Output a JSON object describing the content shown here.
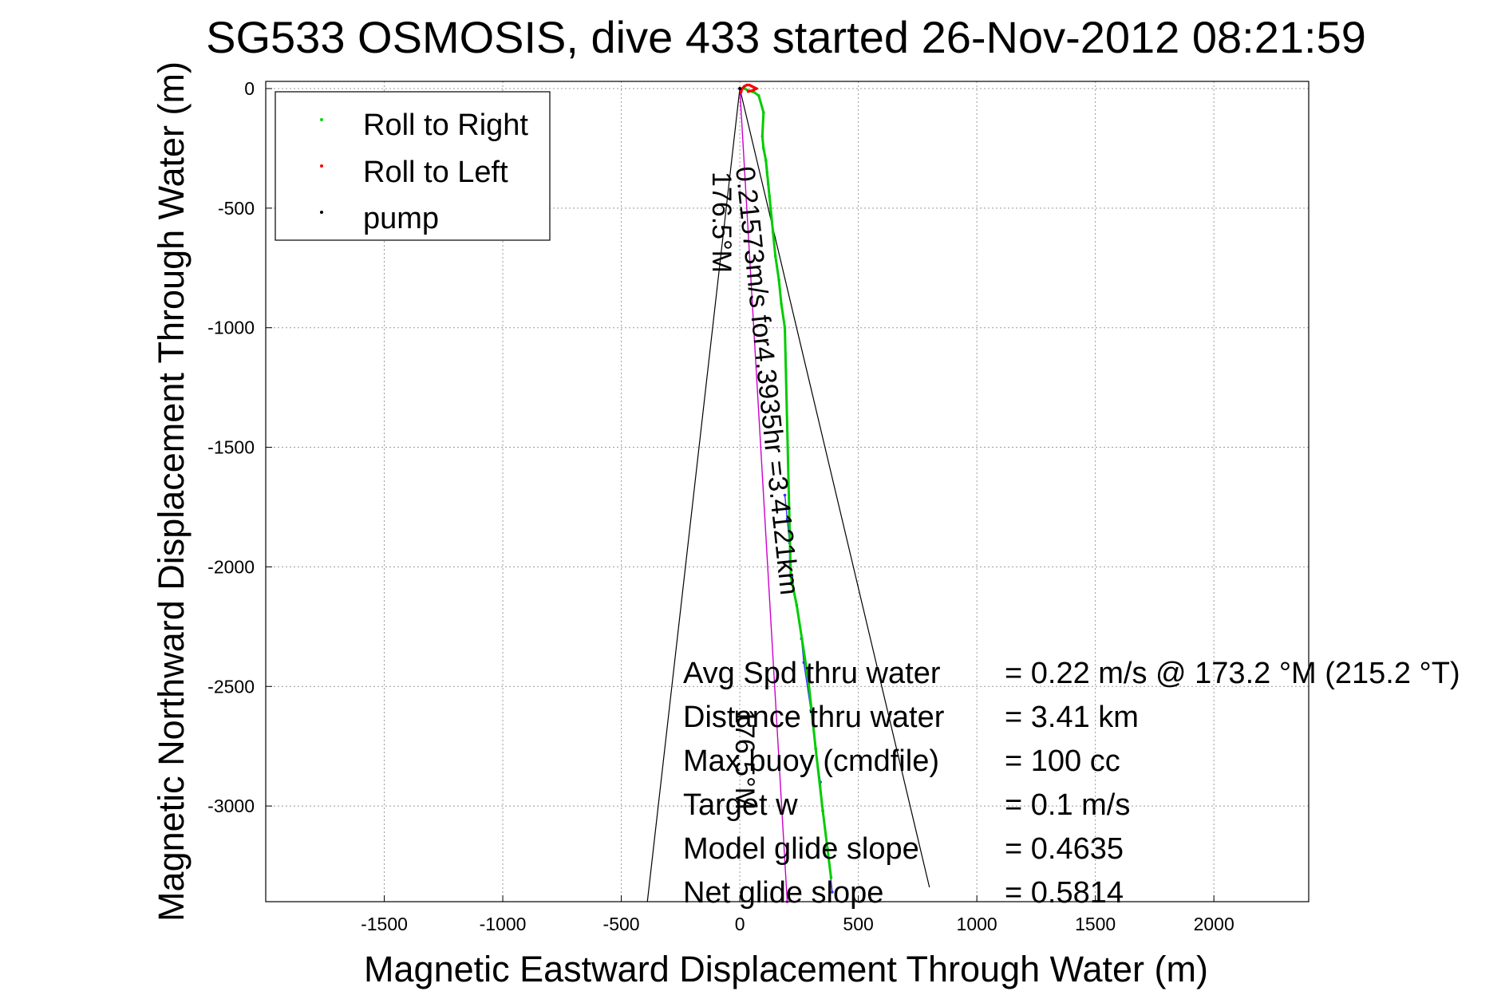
{
  "chart_data": {
    "type": "scatter",
    "title": "SG533 OSMOSIS, dive 433 started 26-Nov-2012 08:21:59",
    "xlabel": "Magnetic Eastward Displacement Through Water (m)",
    "ylabel": "Magnetic Northward Displacement Through Water (m)",
    "xlim": [
      -2000,
      2400
    ],
    "ylim": [
      -3400,
      30
    ],
    "xticks": [
      -1500,
      -1000,
      -500,
      0,
      500,
      1000,
      1500,
      2000
    ],
    "yticks": [
      0,
      -500,
      -1000,
      -1500,
      -2000,
      -2500,
      -3000
    ],
    "grid": true,
    "legend_position": "top-left",
    "legend": [
      {
        "label": "Roll to Right",
        "color": "#00dd00"
      },
      {
        "label": "Roll to Left",
        "color": "#ff0000"
      },
      {
        "label": "pump",
        "color": "#000000"
      }
    ],
    "series": [
      {
        "name": "Roll to Right",
        "color": "#00cc00",
        "x": [
          20,
          40,
          60,
          80,
          100,
          95,
          100,
          110,
          115,
          120,
          125,
          130,
          140,
          150,
          165,
          175,
          190,
          215,
          240,
          290,
          320,
          350,
          370,
          385
        ],
        "y": [
          0,
          -10,
          -15,
          -30,
          -100,
          -200,
          -250,
          -300,
          -350,
          -400,
          -450,
          -500,
          -600,
          -700,
          -800,
          -900,
          -1000,
          -2040,
          -2160,
          -2480,
          -2760,
          -3020,
          -3180,
          -3300
        ]
      },
      {
        "name": "Roll to Left",
        "color": "#ff0000",
        "x": [
          5,
          10,
          20,
          30,
          40,
          50,
          60,
          70,
          55,
          35
        ],
        "y": [
          -15,
          0,
          10,
          15,
          15,
          10,
          5,
          0,
          -8,
          -12
        ]
      },
      {
        "name": "pump",
        "color": "#000000",
        "x": [
          0
        ],
        "y": [
          0
        ]
      },
      {
        "name": "",
        "color": "#3333ff",
        "x": [
          190,
          200,
          210,
          210,
          220,
          240,
          260,
          270,
          300,
          320,
          340,
          350,
          370,
          390
        ],
        "y": [
          -1700,
          -1800,
          -1900,
          -2000,
          -2040,
          -2160,
          -2300,
          -2400,
          -2600,
          -2760,
          -2900,
          -3020,
          -3180,
          -3360
        ]
      },
      {
        "name": "",
        "color": "#cc00cc",
        "x": [
          0,
          200
        ],
        "y": [
          0,
          -3400
        ]
      }
    ],
    "annotations": {
      "bearing_label_1": "176.5°M",
      "speed_label": "0.21573m/s for4.3935hr =3.4121km",
      "bearing_label_2": "176.5°M",
      "stats": [
        {
          "label": "Avg Spd thru water",
          "value": "=  0.22 m/s @ 173.2 °M (215.2 °T)"
        },
        {
          "label": "Distance thru water",
          "value": "=  3.41 km"
        },
        {
          "label": "Max buoy (cmdfile)",
          "value": "= 100 cc"
        },
        {
          "label": "Target w",
          "value": "= 0.1 m/s"
        },
        {
          "label": "Model glide slope",
          "value": "= 0.4635"
        },
        {
          "label": "Net glide slope",
          "value": "= 0.5814"
        }
      ]
    }
  }
}
